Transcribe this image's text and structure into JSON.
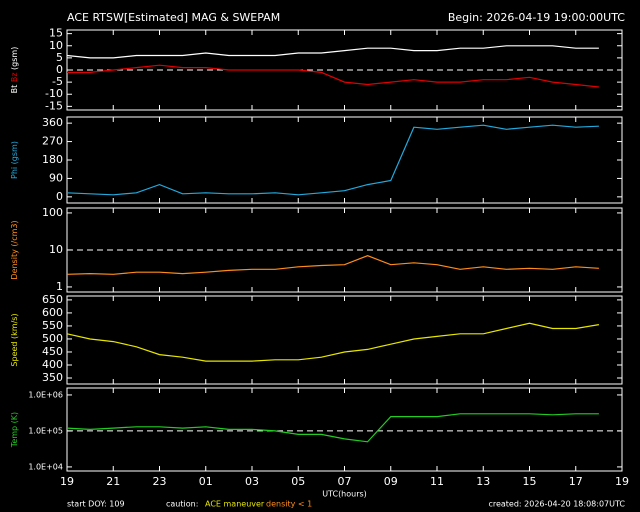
{
  "chart_data": [
    {
      "type": "line",
      "title": "ACE RTSW[Estimated] MAG & SWEPAM",
      "subtitle": "Begin: 2026-04-19 19:00:00UTC",
      "ylabel": "(gsm)",
      "x": [
        0,
        1,
        2,
        3,
        4,
        5,
        6,
        7,
        8,
        9,
        10,
        11,
        12,
        13,
        14,
        15,
        16,
        17,
        18,
        19,
        20,
        21,
        22,
        23
      ],
      "xlim": [
        0,
        24
      ],
      "ylim": [
        -16.5,
        16.5
      ],
      "yticks": [
        15,
        10,
        5,
        0,
        -5,
        -10,
        -15
      ],
      "hline": 0,
      "series": [
        {
          "name": "Bt",
          "color": "#ffffff",
          "values": [
            6,
            5,
            5,
            6,
            6,
            6,
            7,
            6,
            6,
            6,
            7,
            7,
            8,
            9,
            9,
            8,
            8,
            9,
            9,
            10,
            10,
            10,
            9,
            9
          ]
        },
        {
          "name": "Bz",
          "color": "#e00000",
          "values": [
            -1,
            -1,
            0,
            1,
            2,
            1,
            1,
            0,
            0,
            0,
            0,
            -1,
            -5,
            -6,
            -5,
            -4,
            -5,
            -5,
            -4,
            -4,
            -3,
            -5,
            -6,
            -7
          ]
        }
      ]
    },
    {
      "type": "line",
      "ylabel": "(gsm)",
      "x": [
        0,
        1,
        2,
        3,
        4,
        5,
        6,
        7,
        8,
        9,
        10,
        11,
        12,
        13,
        14,
        15,
        16,
        17,
        18,
        19,
        20,
        21,
        22,
        23
      ],
      "xlim": [
        0,
        24
      ],
      "ylim": [
        -30,
        390
      ],
      "yticks": [
        0,
        90,
        180,
        270,
        360
      ],
      "series": [
        {
          "name": "Phi",
          "color": "#22aadd",
          "values": [
            20,
            15,
            10,
            20,
            60,
            15,
            20,
            15,
            15,
            20,
            10,
            20,
            30,
            60,
            80,
            340,
            330,
            340,
            350,
            330,
            340,
            350,
            340,
            345
          ]
        }
      ]
    },
    {
      "type": "line",
      "ylabel": "(/cm3)",
      "log": true,
      "x": [
        0,
        1,
        2,
        3,
        4,
        5,
        6,
        7,
        8,
        9,
        10,
        11,
        12,
        13,
        14,
        15,
        16,
        17,
        18,
        19,
        20,
        21,
        22,
        23
      ],
      "xlim": [
        0,
        24
      ],
      "ylim": [
        0.73,
        136
      ],
      "yticks": [
        1,
        10,
        100
      ],
      "hline": 10,
      "series": [
        {
          "name": "Density",
          "color": "#ff8c1a",
          "values": [
            2.2,
            2.3,
            2.2,
            2.5,
            2.5,
            2.3,
            2.5,
            2.8,
            3,
            3,
            3.5,
            3.8,
            4,
            7,
            4,
            4.5,
            4,
            3,
            3.5,
            3,
            3.2,
            3,
            3.5,
            3.2
          ]
        }
      ]
    },
    {
      "type": "line",
      "ylabel": "(km/s)",
      "x": [
        0,
        1,
        2,
        3,
        4,
        5,
        6,
        7,
        8,
        9,
        10,
        11,
        12,
        13,
        14,
        15,
        16,
        17,
        18,
        19,
        20,
        21,
        22,
        23
      ],
      "xlim": [
        0,
        24
      ],
      "ylim": [
        327,
        665
      ],
      "yticks": [
        350,
        400,
        450,
        500,
        550,
        600,
        650
      ],
      "series": [
        {
          "name": "Speed",
          "color": "#e6e600",
          "values": [
            520,
            500,
            490,
            470,
            440,
            430,
            415,
            415,
            415,
            420,
            420,
            430,
            450,
            460,
            480,
            500,
            510,
            520,
            520,
            540,
            560,
            540,
            540,
            555
          ]
        }
      ]
    },
    {
      "type": "line",
      "ylabel": "(K)",
      "log": true,
      "xlabel": "UTC(hours)",
      "x": [
        0,
        1,
        2,
        3,
        4,
        5,
        6,
        7,
        8,
        9,
        10,
        11,
        12,
        13,
        14,
        15,
        16,
        17,
        18,
        19,
        20,
        21,
        22,
        23
      ],
      "xlim": [
        0,
        24
      ],
      "ylim": [
        7700,
        1560000
      ],
      "hline": 100000,
      "yticks": [
        {
          "value": 10000,
          "label": "1.0E+04"
        },
        {
          "value": 100000,
          "label": "1.0E+05"
        },
        {
          "value": 1000000,
          "label": "1.0E+06"
        }
      ],
      "xticks": [
        {
          "value": 0,
          "label": "19"
        },
        {
          "value": 2,
          "label": "21"
        },
        {
          "value": 4,
          "label": "23"
        },
        {
          "value": 6,
          "label": "01"
        },
        {
          "value": 8,
          "label": "03"
        },
        {
          "value": 10,
          "label": "05"
        },
        {
          "value": 12,
          "label": "07"
        },
        {
          "value": 14,
          "label": "09"
        },
        {
          "value": 16,
          "label": "11"
        },
        {
          "value": 18,
          "label": "13"
        },
        {
          "value": 20,
          "label": "15"
        },
        {
          "value": 22,
          "label": "17"
        },
        {
          "value": 24,
          "label": "19"
        }
      ],
      "series": [
        {
          "name": "Temp",
          "color": "#22cc22",
          "values": [
            120000,
            110000,
            120000,
            130000,
            130000,
            120000,
            130000,
            110000,
            110000,
            100000,
            80000,
            80000,
            60000,
            50000,
            250000,
            250000,
            250000,
            300000,
            300000,
            300000,
            300000,
            280000,
            300000,
            300000
          ]
        }
      ]
    }
  ],
  "footer": {
    "start": "start DOY: 109",
    "caution": "caution:",
    "maneuver": "ACE maneuver",
    "density_note": "density < 1",
    "created": "created: 2026-04-20 18:08:07UTC"
  }
}
